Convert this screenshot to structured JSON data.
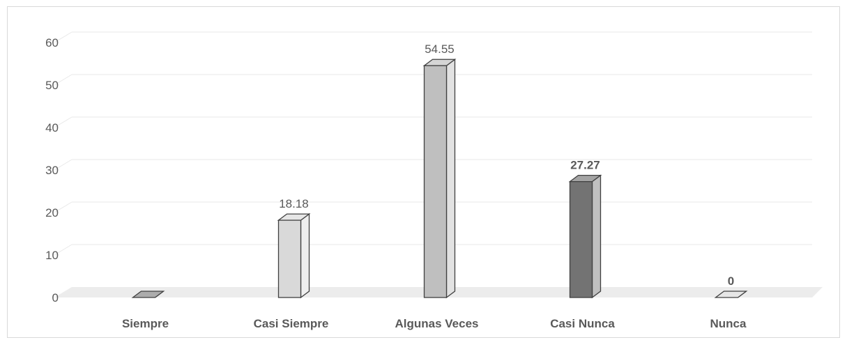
{
  "chart_data": {
    "type": "bar",
    "categories": [
      "Siempre",
      "Casi Siempre",
      "Algunas Veces",
      "Casi Nunca",
      "Nunca"
    ],
    "values": [
      0,
      18.18,
      54.55,
      27.27,
      0
    ],
    "data_labels": [
      "",
      "18.18",
      "54.55",
      "27.27",
      "0"
    ],
    "bold_labels": [
      false,
      false,
      false,
      true,
      true
    ],
    "bar_colors": [
      "#7f7f7f",
      "#d9d9d9",
      "#bfbfbf",
      "#737373",
      "#d9d9d9"
    ],
    "ylim": [
      0,
      60
    ],
    "yticks": [
      "0",
      "10",
      "20",
      "30",
      "40",
      "50",
      "60"
    ],
    "grid": true,
    "legend": "none",
    "title": "",
    "xlabel": "",
    "ylabel": ""
  }
}
